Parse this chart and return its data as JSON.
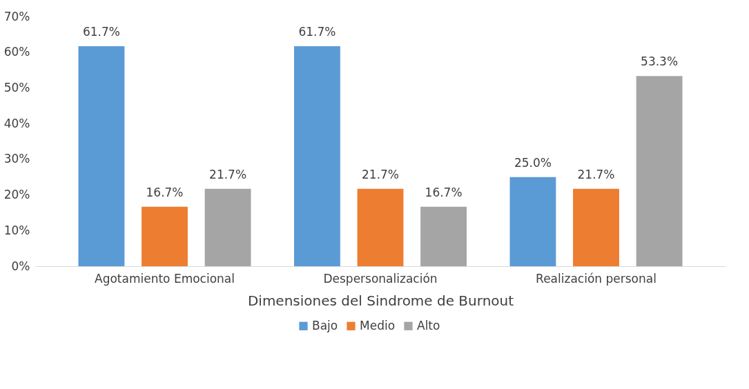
{
  "chart_data": {
    "type": "bar",
    "xlabel": "Dimensiones del Sindrome de Burnout",
    "categories": [
      "Agotamiento Emocional",
      "Despersonalización",
      "Realización personal"
    ],
    "series": [
      {
        "name": "Bajo",
        "color": "#5b9bd5",
        "values": [
          61.7,
          61.7,
          25.0
        ],
        "value_labels": [
          "61.7%",
          "61.7%",
          "25.0%"
        ]
      },
      {
        "name": "Medio",
        "color": "#ed7d31",
        "values": [
          16.7,
          21.7,
          21.7
        ],
        "value_labels": [
          "16.7%",
          "21.7%",
          "21.7%"
        ]
      },
      {
        "name": "Alto",
        "color": "#a5a5a5",
        "values": [
          21.7,
          16.7,
          53.3
        ],
        "value_labels": [
          "21.7%",
          "16.7%",
          "53.3%"
        ]
      }
    ],
    "ylim": [
      0,
      70
    ],
    "yticks": [
      {
        "value": 0,
        "label": "0%"
      },
      {
        "value": 10,
        "label": "10%"
      },
      {
        "value": 20,
        "label": "20%"
      },
      {
        "value": 30,
        "label": "30%"
      },
      {
        "value": 40,
        "label": "40%"
      },
      {
        "value": 50,
        "label": "50%"
      },
      {
        "value": 60,
        "label": "60%"
      },
      {
        "value": 70,
        "label": "70%"
      }
    ],
    "grid": false,
    "legend": "bottom"
  }
}
